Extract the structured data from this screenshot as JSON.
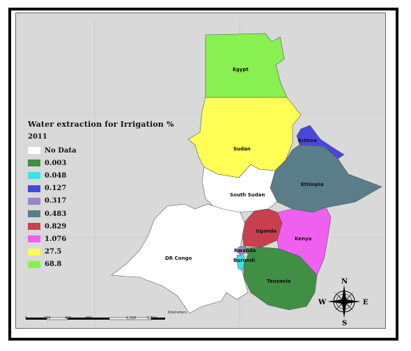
{
  "legend": {
    "title": "Water extraction for Irrigation  %",
    "year": "2011",
    "items": [
      {
        "label": "No Data",
        "color": "#ffffff"
      },
      {
        "label": "0.003",
        "color": "#3f8f45"
      },
      {
        "label": "0.048",
        "color": "#40e0e8"
      },
      {
        "label": "0.127",
        "color": "#4747e0"
      },
      {
        "label": "0.317",
        "color": "#9b85c9"
      },
      {
        "label": "0.483",
        "color": "#5a7d8a"
      },
      {
        "label": "0.829",
        "color": "#c8404e"
      },
      {
        "label": "1.076",
        "color": "#f060f0"
      },
      {
        "label": "27.5",
        "color": "#ffff55"
      },
      {
        "label": "68.8",
        "color": "#88f050"
      }
    ]
  },
  "countries": [
    {
      "name": "Egypt",
      "value": "68.8",
      "color": "#88f050"
    },
    {
      "name": "Sudan",
      "value": "27.5",
      "color": "#ffff55"
    },
    {
      "name": "Eritrea",
      "value": "0.127",
      "color": "#4747e0"
    },
    {
      "name": "Ethiopia",
      "value": "0.483",
      "color": "#5a7d8a"
    },
    {
      "name": "South Sudan",
      "value": "No Data",
      "color": "#ffffff"
    },
    {
      "name": "DR Congo",
      "value": "No Data",
      "color": "#ffffff"
    },
    {
      "name": "Uganda",
      "value": "0.829",
      "color": "#c8404e"
    },
    {
      "name": "Kenya",
      "value": "1.076",
      "color": "#f060f0"
    },
    {
      "name": "Rwanda",
      "value": "0.317",
      "color": "#9b85c9"
    },
    {
      "name": "Burundi",
      "value": "0.048",
      "color": "#40e0e8"
    },
    {
      "name": "Tanzania",
      "value": "0.003",
      "color": "#3f8f45"
    }
  ],
  "scale": {
    "unit": "Kilometers",
    "ticks": [
      "0",
      "220",
      "440",
      "880",
      "1,320",
      "1,760"
    ]
  },
  "compass": {
    "n": "N",
    "s": "S",
    "e": "E",
    "w": "W",
    "icon": "compass-rose-icon"
  }
}
